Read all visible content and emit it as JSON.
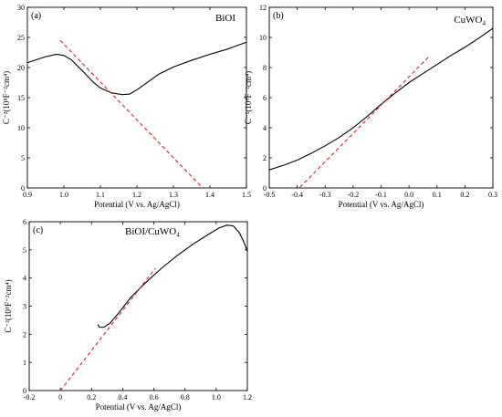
{
  "chart_data": [
    {
      "type": "line",
      "panel": "(a)",
      "material": "BiOI",
      "xlabel": "Potential (V vs. Ag/AgCl)",
      "ylabel": "C⁻²(10⁸F⁻²cm⁴)",
      "xlim": [
        0.9,
        1.5
      ],
      "ylim": [
        0,
        30
      ],
      "xticks": [
        0.9,
        1.0,
        1.1,
        1.2,
        1.3,
        1.4,
        1.5
      ],
      "xtick_labels": [
        "0.9",
        "1.0",
        "1.1",
        "1.2",
        "1.3",
        "1.4",
        "1.5"
      ],
      "yticks": [
        0,
        5,
        10,
        15,
        20,
        25,
        30
      ],
      "ytick_labels": [
        "0",
        "5",
        "10",
        "15",
        "20",
        "25",
        "30"
      ],
      "series": [
        {
          "style": "solid",
          "color": "#000000",
          "x": [
            0.9,
            0.95,
            0.98,
            1.0,
            1.02,
            1.05,
            1.08,
            1.1,
            1.13,
            1.16,
            1.18,
            1.2,
            1.23,
            1.26,
            1.3,
            1.35,
            1.4,
            1.45,
            1.5
          ],
          "y": [
            20.8,
            21.8,
            22.2,
            22.0,
            21.3,
            19.5,
            17.6,
            16.6,
            15.8,
            15.5,
            15.6,
            16.3,
            17.6,
            18.9,
            20.1,
            21.2,
            22.2,
            23.1,
            24.2
          ]
        },
        {
          "style": "dashed",
          "color": "#e0201c",
          "x": [
            0.99,
            1.38
          ],
          "y": [
            24.5,
            0
          ]
        }
      ]
    },
    {
      "type": "line",
      "panel": "(b)",
      "material": "CuWO₄",
      "xlabel": "Potential (V vs. Ag/AgCl)",
      "ylabel": "C⁻²(10⁸F⁻²cm⁴)",
      "xlim": [
        -0.5,
        0.3
      ],
      "ylim": [
        0,
        12
      ],
      "xticks": [
        -0.5,
        -0.4,
        -0.3,
        -0.2,
        -0.1,
        0.0,
        0.1,
        0.2,
        0.3
      ],
      "xtick_labels": [
        "-0.5",
        "-0.4",
        "-0.3",
        "-0.2",
        "-0.1",
        "0.0",
        "0.1",
        "0.2",
        "0.3"
      ],
      "yticks": [
        0,
        2,
        4,
        6,
        8,
        10,
        12
      ],
      "ytick_labels": [
        "0",
        "2",
        "4",
        "6",
        "8",
        "10",
        "12"
      ],
      "series": [
        {
          "style": "solid",
          "color": "#000000",
          "x": [
            -0.5,
            -0.45,
            -0.4,
            -0.35,
            -0.3,
            -0.25,
            -0.2,
            -0.15,
            -0.1,
            -0.05,
            0.0,
            0.05,
            0.1,
            0.15,
            0.2,
            0.25,
            0.3
          ],
          "y": [
            1.2,
            1.5,
            1.85,
            2.3,
            2.8,
            3.35,
            4.0,
            4.75,
            5.55,
            6.3,
            7.0,
            7.6,
            8.2,
            8.8,
            9.35,
            9.95,
            10.6
          ]
        },
        {
          "style": "dashed",
          "color": "#e0201c",
          "x": [
            -0.39,
            0.07
          ],
          "y": [
            0.05,
            8.7
          ]
        }
      ]
    },
    {
      "type": "line",
      "panel": "(c)",
      "material": "BiOI/CuWO₄",
      "xlabel": "Potential (V vs. Ag/AgCl)",
      "ylabel": "C⁻²(10⁸F⁻²cm⁴)",
      "xlim": [
        -0.2,
        1.2
      ],
      "ylim": [
        0,
        6
      ],
      "xticks": [
        -0.2,
        0.0,
        0.2,
        0.4,
        0.6,
        0.8,
        1.0,
        1.2
      ],
      "xtick_labels": [
        "-0.2",
        "0",
        "0.2",
        "0.4",
        "0.6",
        "0.8",
        "1.0",
        "1.2"
      ],
      "yticks": [
        0,
        1,
        2,
        3,
        4,
        5,
        6
      ],
      "ytick_labels": [
        "0",
        "1",
        "2",
        "3",
        "4",
        "5",
        "6"
      ],
      "series": [
        {
          "style": "solid",
          "color": "#000000",
          "x": [
            0.24,
            0.25,
            0.28,
            0.32,
            0.38,
            0.45,
            0.55,
            0.65,
            0.75,
            0.85,
            0.95,
            1.02,
            1.07,
            1.11,
            1.15,
            1.18,
            1.2
          ],
          "y": [
            2.35,
            2.25,
            2.25,
            2.4,
            2.8,
            3.3,
            3.85,
            4.35,
            4.8,
            5.2,
            5.55,
            5.78,
            5.88,
            5.85,
            5.6,
            5.25,
            4.95
          ]
        },
        {
          "style": "dashed",
          "color": "#e0201c",
          "x": [
            0.0,
            0.61
          ],
          "y": [
            0.0,
            4.35
          ]
        }
      ]
    }
  ]
}
